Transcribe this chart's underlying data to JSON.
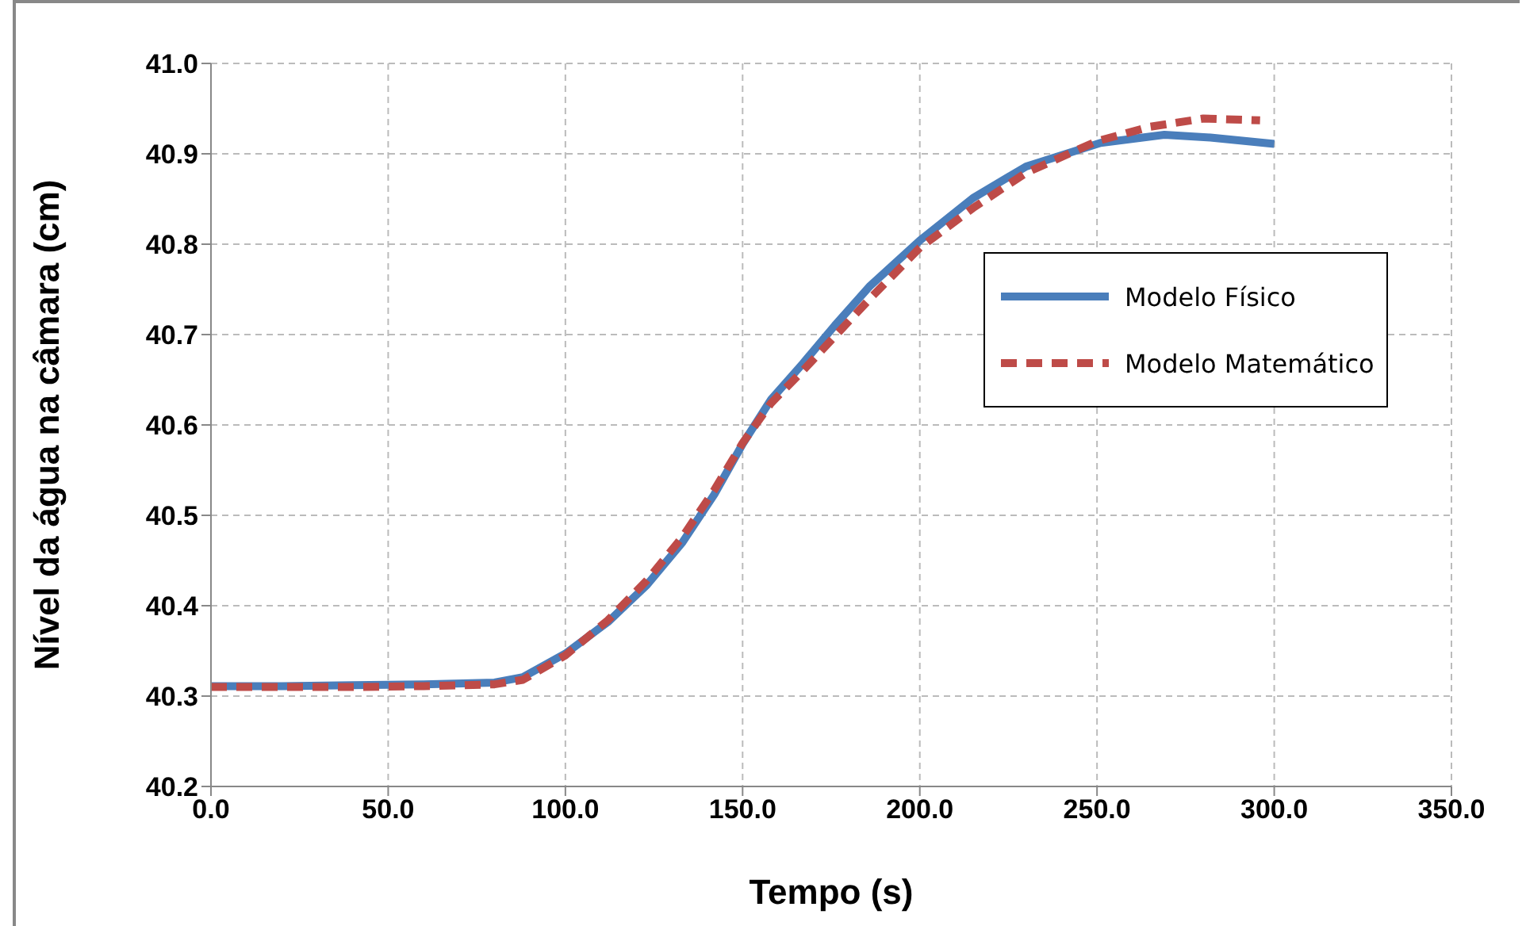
{
  "chart_data": {
    "type": "line",
    "xlabel": "Tempo (s)",
    "ylabel": "Nível da água na câmara (cm)",
    "xlim": [
      0,
      350
    ],
    "xticks": [
      {
        "value": 0,
        "label": "0.0"
      },
      {
        "value": 50,
        "label": "50.0"
      },
      {
        "value": 100,
        "label": "100.0"
      },
      {
        "value": 150,
        "label": "150.0"
      },
      {
        "value": 200,
        "label": "200.0"
      },
      {
        "value": 250,
        "label": "250.0"
      },
      {
        "value": 300,
        "label": "300.0"
      },
      {
        "value": 350,
        "label": "350.0"
      }
    ],
    "ylim": [
      40.2,
      41.0
    ],
    "yticks": [
      40.2,
      40.3,
      40.4,
      40.5,
      40.6,
      40.7,
      40.8,
      40.9,
      {
        "value": 41.0,
        "label": "41.0"
      }
    ],
    "grid": true,
    "legend": "right",
    "series": [
      {
        "name": "Modelo Físico",
        "color": "#4a7ebb",
        "line_style": "solid",
        "x": [
          0,
          20,
          40,
          60,
          80,
          88,
          100,
          112,
          123,
          133,
          142,
          150,
          158,
          167,
          176,
          186,
          200,
          215,
          230,
          251,
          269,
          282,
          300
        ],
        "values": [
          40.311,
          40.311,
          40.312,
          40.313,
          40.315,
          40.321,
          40.347,
          40.382,
          40.423,
          40.47,
          40.523,
          40.579,
          40.628,
          40.668,
          40.71,
          40.754,
          40.804,
          40.851,
          40.886,
          40.912,
          40.921,
          40.918,
          40.911
        ]
      },
      {
        "name": "Modelo Matemático",
        "color": "#be4b48",
        "line_style": "dashed",
        "x": [
          0,
          20,
          40,
          60,
          80,
          88,
          100,
          112,
          123,
          133,
          142,
          150,
          158,
          167,
          176,
          186,
          200,
          215,
          230,
          250,
          265,
          280,
          296
        ],
        "values": [
          40.31,
          40.31,
          40.31,
          40.311,
          40.313,
          40.318,
          40.345,
          40.384,
          40.428,
          40.476,
          40.528,
          40.58,
          40.624,
          40.66,
          40.698,
          40.74,
          40.796,
          40.84,
          40.879,
          40.914,
          40.93,
          40.939,
          40.937
        ]
      }
    ]
  }
}
